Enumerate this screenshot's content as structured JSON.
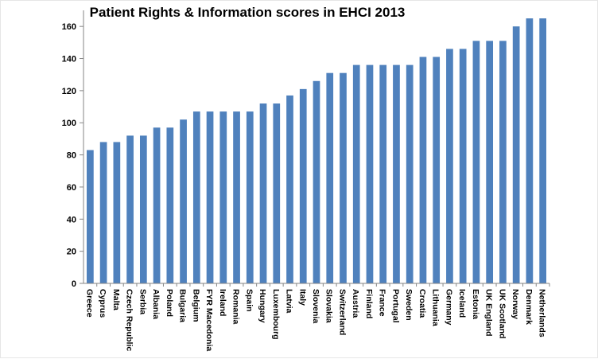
{
  "chart_data": {
    "type": "bar",
    "title": "Patient Rights & Information scores in EHCI 2013",
    "xlabel": "",
    "ylabel": "",
    "ylim": [
      0,
      170
    ],
    "yticks": [
      0,
      20,
      40,
      60,
      80,
      100,
      120,
      140,
      160
    ],
    "grid": false,
    "legend": "none",
    "bar_color": "#4F81BD",
    "categories": [
      "Greece",
      "Cyprus",
      "Malta",
      "Czech Republic",
      "Serbia",
      "Albania",
      "Poland",
      "Bulgaria",
      "Belgium",
      "FYR Macedonia",
      "Ireland",
      "Romania",
      "Spain",
      "Hungary",
      "Luxembourg",
      "Latvia",
      "Italy",
      "Slovenia",
      "Slovakia",
      "Switzerland",
      "Austria",
      "Finland",
      "France",
      "Portugal",
      "Sweden",
      "Croatia",
      "Lithuania",
      "Germany",
      "Iceland",
      "Estonia",
      "UK England",
      "UK Scotland",
      "Norway",
      "Denmark",
      "Netherlands"
    ],
    "values": [
      83,
      88,
      88,
      92,
      92,
      97,
      97,
      102,
      107,
      107,
      107,
      107,
      107,
      112,
      112,
      117,
      121,
      126,
      131,
      131,
      136,
      136,
      136,
      136,
      136,
      141,
      141,
      146,
      146,
      151,
      151,
      151,
      160,
      165,
      165
    ]
  }
}
